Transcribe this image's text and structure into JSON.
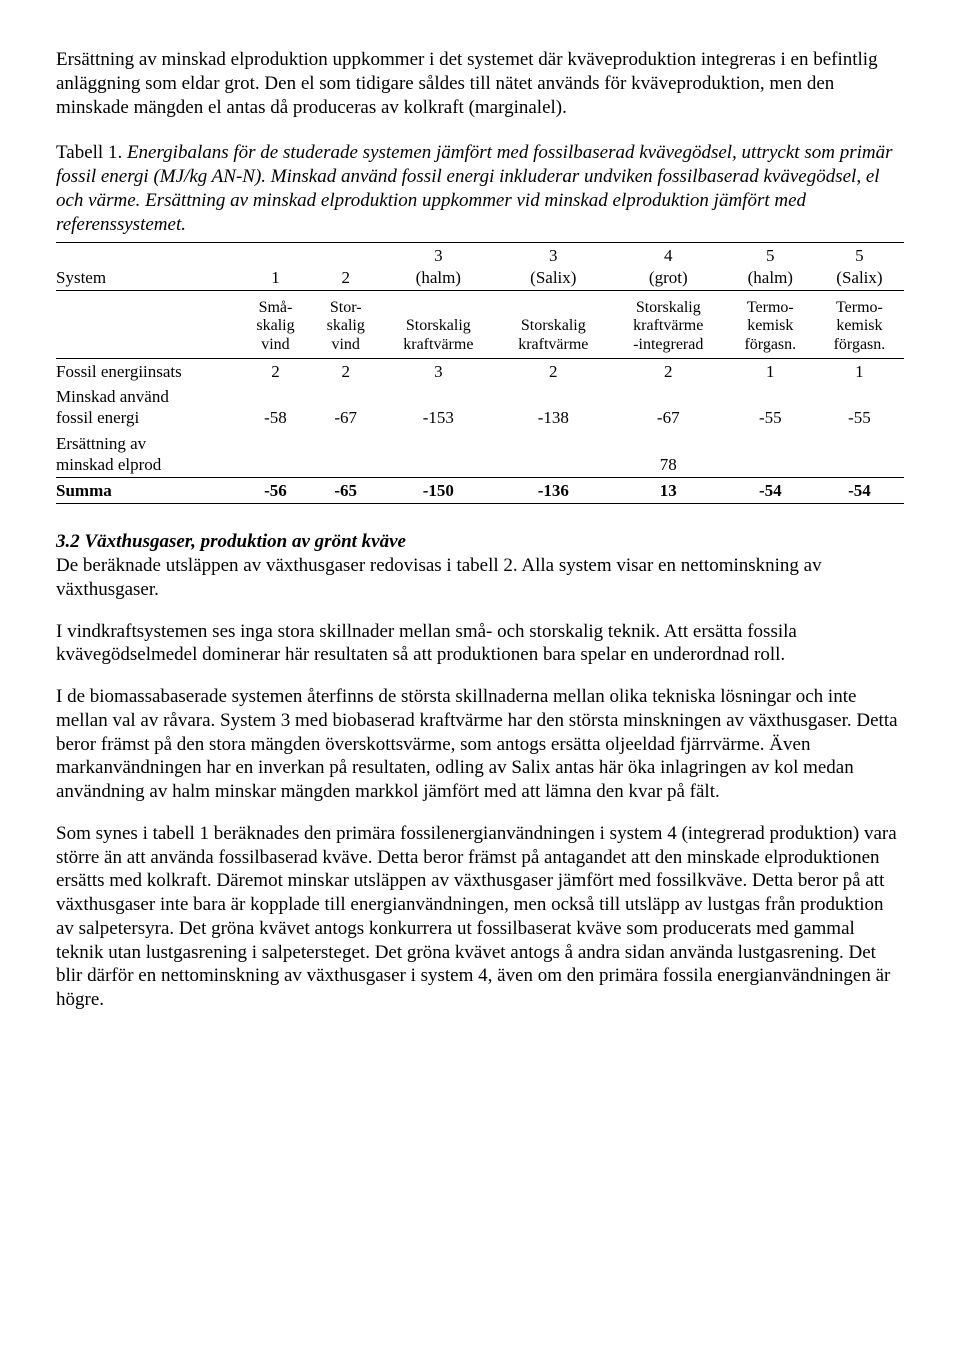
{
  "intro": {
    "p1": "Ersättning av minskad elproduktion uppkommer i det systemet där kväveproduktion integreras i en befintlig anläggning som eldar grot. Den el som tidigare såldes till nätet används för kväveproduktion, men den minskade mängden el antas då produceras av kolkraft (marginalel)."
  },
  "table1": {
    "caption_lead": "Tabell 1. ",
    "caption_body": "Energibalans för de studerade systemen jämfört med fossilbaserad kvävegödsel, uttryckt som primär fossil energi (MJ/kg AN-N). Minskad använd fossil energi inkluderar undviken fossilbaserad kvävegödsel, el och värme. Ersättning av minskad elproduktion uppkommer vid minskad elproduktion jämfört med referenssystemet.",
    "header": {
      "system_label": "System",
      "cols": [
        "1",
        "2",
        "3\n(halm)",
        "3\n(Salix)",
        "4\n(grot)",
        "5\n(halm)",
        "5\n(Salix)"
      ]
    },
    "subheader": {
      "cols": [
        "Små-\nskalig\nvind",
        "Stor-\nskalig\nvind",
        "Storskalig\nkraftvärme",
        "Storskalig\nkraftvärme",
        "Storskalig\nkraftvärme\n-integrerad",
        "Termo-\nkemisk\nförgasn.",
        "Termo-\nkemisk\nförgasn."
      ]
    },
    "rows": [
      {
        "label": "Fossil energiinsats",
        "vals": [
          "2",
          "2",
          "3",
          "2",
          "2",
          "1",
          "1"
        ]
      },
      {
        "label": "Minskad använd\nfossil energi",
        "vals": [
          "-58",
          "-67",
          "-153",
          "-138",
          "-67",
          "-55",
          "-55"
        ]
      },
      {
        "label": "Ersättning av\nminskad elprod",
        "vals": [
          "",
          "",
          "",
          "",
          "78",
          "",
          ""
        ]
      },
      {
        "label": "Summa",
        "vals": [
          "-56",
          "-65",
          "-150",
          "-136",
          "13",
          "-54",
          "-54"
        ],
        "bold": true
      }
    ]
  },
  "section32": {
    "title": "3.2 Växthusgaser, produktion av grönt kväve",
    "p1": "De beräknade utsläppen av växthusgaser redovisas i tabell 2. Alla system visar en nettominskning av växthusgaser.",
    "p2": "I vindkraftsystemen ses inga stora skillnader mellan små- och storskalig teknik. Att ersätta fossila kvävegödselmedel dominerar här resultaten så att produktionen bara spelar en underordnad roll.",
    "p3": "I de biomassabaserade systemen återfinns de största skillnaderna mellan olika tekniska lösningar och inte mellan val av råvara. System 3 med biobaserad kraftvärme har den största minskningen av växthusgaser. Detta beror främst på den stora mängden överskottsvärme, som antogs ersätta oljeeldad fjärrvärme. Även markanvändningen har en inverkan på resultaten, odling av Salix antas här öka inlagringen av kol medan användning av halm minskar mängden markkol jämfört med att lämna den kvar på fält.",
    "p4": "Som synes i tabell 1 beräknades den primära fossilenergianvändningen i system 4 (integrerad produktion) vara större än att använda fossilbaserad kväve. Detta beror främst på antagandet att den minskade elproduktionen ersätts med kolkraft. Däremot minskar utsläppen av växthusgaser jämfört med fossilkväve. Detta beror på att växthusgaser inte bara är kopplade till energianvändningen, men också till utsläpp av lustgas från produktion av salpetersyra. Det gröna kvävet antogs konkurrera ut fossilbaserat kväve som producerats med gammal teknik utan lustgasrening i salpetersteget. Det gröna kvävet antogs å andra sidan använda lustgasrening. Det blir därför en nettominskning av växthusgaser i system 4, även om den primära fossila energianvändningen är högre."
  }
}
